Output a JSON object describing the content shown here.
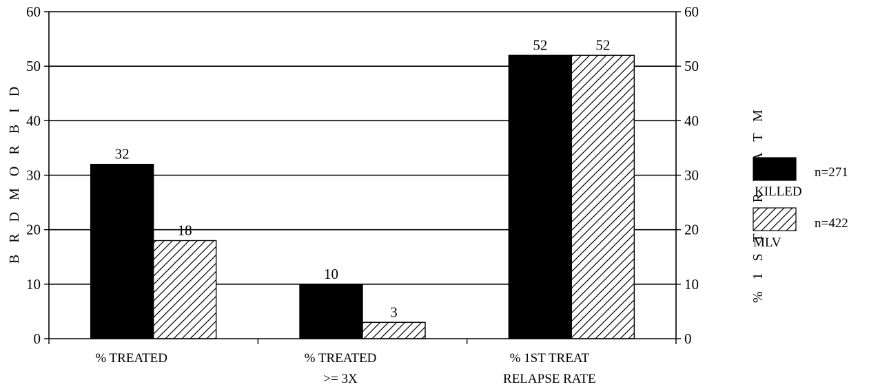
{
  "chart_data": {
    "type": "bar",
    "categories": [
      [
        "% TREATED"
      ],
      [
        "% TREATED",
        ">= 3X"
      ],
      [
        "% 1ST TREAT",
        "RELAPSE RATE"
      ]
    ],
    "series": [
      {
        "name": "KILLED",
        "n_label": "n=271",
        "values": [
          32,
          10,
          52
        ],
        "fill": "solid",
        "color": "#000000"
      },
      {
        "name": "MLV",
        "n_label": "n=422",
        "values": [
          18,
          3,
          52
        ],
        "fill": "hatch",
        "color": "#000000"
      }
    ],
    "data_labels": [
      [
        "32",
        "10",
        "52"
      ],
      [
        "18",
        "3",
        "52"
      ]
    ],
    "ylim": [
      0,
      60
    ],
    "yticks": [
      "0",
      "10",
      "20",
      "30",
      "40",
      "50",
      "60"
    ],
    "ylabel_left": "B R D  M O R B I D",
    "ylabel_right": "% 1 S T  T R E A T M",
    "grid": true,
    "legend_position": "right"
  }
}
